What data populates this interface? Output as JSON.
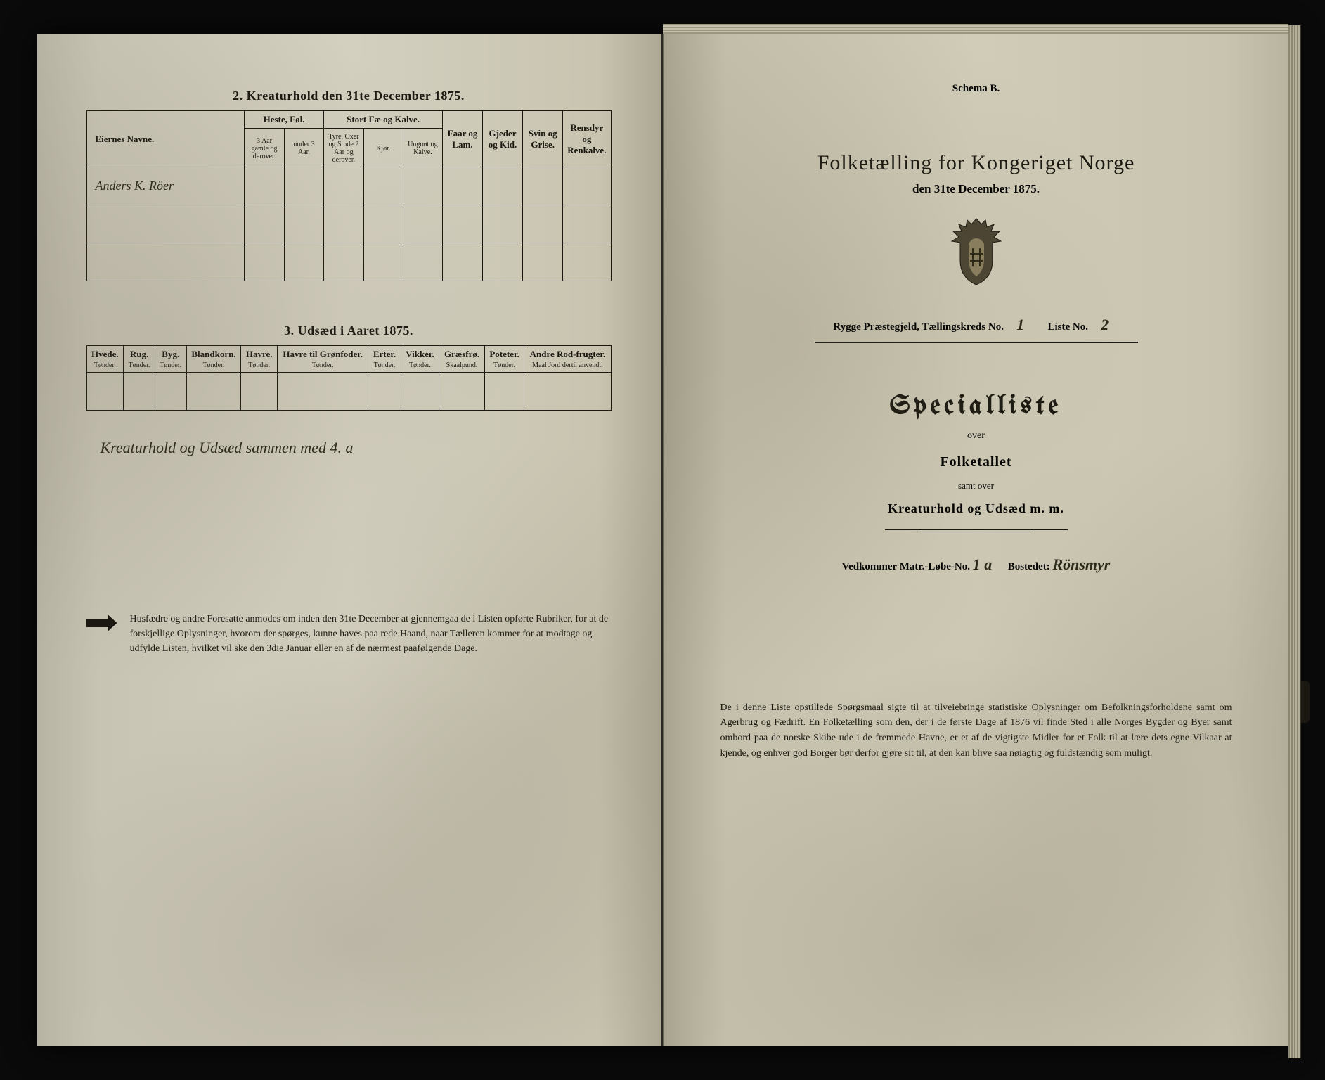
{
  "left": {
    "section2": {
      "title": "2. Kreaturhold den 31te December 1875.",
      "headers": {
        "eier": "Eiernes Navne.",
        "heste": "Heste, Føl.",
        "heste_sub": [
          "3 Aar gamle og derover.",
          "under 3 Aar."
        ],
        "storfe": "Stort Fæ og Kalve.",
        "storfe_sub": [
          "Tyre, Oxer og Stude 2 Aar og derover.",
          "Kjør.",
          "Ungnøt og Kalve."
        ],
        "faar": "Faar og Lam.",
        "gjeder": "Gjeder og Kid.",
        "svin": "Svin og Grise.",
        "rensdyr": "Rensdyr og Renkalve."
      },
      "row1_name": "Anders K. Röer"
    },
    "section3": {
      "title": "3. Udsæd i Aaret 1875.",
      "cols": [
        {
          "h": "Hvede.",
          "s": "Tønder."
        },
        {
          "h": "Rug.",
          "s": "Tønder."
        },
        {
          "h": "Byg.",
          "s": "Tønder."
        },
        {
          "h": "Blandkorn.",
          "s": "Tønder."
        },
        {
          "h": "Havre.",
          "s": "Tønder."
        },
        {
          "h": "Havre til Grønfoder.",
          "s": "Tønder."
        },
        {
          "h": "Erter.",
          "s": "Tønder."
        },
        {
          "h": "Vikker.",
          "s": "Tønder."
        },
        {
          "h": "Græsfrø.",
          "s": "Skaalpund."
        },
        {
          "h": "Poteter.",
          "s": "Tønder."
        },
        {
          "h": "Andre Rod-frugter.",
          "s": "Maal Jord dertil anvendt."
        }
      ]
    },
    "handnote": "Kreaturhold og Udsæd sammen med 4. a",
    "footnote": "Husfædre og andre Foresatte anmodes om inden den 31te December at gjennemgaa de i Listen opførte Rubriker, for at de forskjellige Oplysninger, hvorom der spørges, kunne haves paa rede Haand, naar Tælleren kommer for at modtage og udfylde Listen, hvilket vil ske den 3die Januar eller en af de nærmest paafølgende Dage."
  },
  "right": {
    "schema": "Schema B.",
    "title": "Folketælling for Kongeriget Norge",
    "subtitle": "den 31te December 1875.",
    "line1_a": "Rygge Præstegjeld,  Tællingskreds No.",
    "line1_val1": "1",
    "line1_b": "Liste No.",
    "line1_val2": "2",
    "spec": "Specialliste",
    "over": "over",
    "folketallet": "Folketallet",
    "samt": "samt over",
    "kreatur": "Kreaturhold og Udsæd m. m.",
    "vedk_a": "Vedkommer Matr.-Løbe-No.",
    "vedk_val1": "1 a",
    "vedk_b": "Bostedet:",
    "vedk_val2": "Rönsmyr",
    "bottom": "De i denne Liste opstillede Spørgsmaal sigte til at tilveiebringe statistiske Oplysninger om Befolkningsforholdene samt om Agerbrug og Fædrift. En Folketælling som den, der i de første Dage af 1876 vil finde Sted i alle Norges Bygder og Byer samt ombord paa de norske Skibe ude i de fremmede Havne, er et af de vigtigste Midler for et Folk til at lære dets egne Vilkaar at kjende, og enhver god Borger bør derfor gjøre sit til, at den kan blive saa nøiagtig og fuldstændig som muligt."
  },
  "colors": {
    "ink": "#1a1810",
    "paper": "#d0ccb8"
  }
}
